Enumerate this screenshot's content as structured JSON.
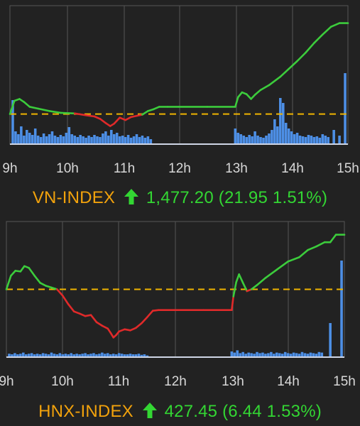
{
  "colors": {
    "background": "#222222",
    "grid": "#555555",
    "up_line": "#3ccc3c",
    "down_line": "#e02a2a",
    "reference_line": "#f0b400",
    "volume": "#4d8fe6",
    "index_name": "#f2a20c",
    "change": "#33d633"
  },
  "chart_data": [
    {
      "type": "line",
      "index_name": "VN-INDEX",
      "value_text": "1,477.20",
      "change_text": "(21.95 1.51%)",
      "direction": "up",
      "arrow_icon": "up-arrow-icon",
      "x_ticks": [
        "9h",
        "10h",
        "11h",
        "12h",
        "13h",
        "14h",
        "15h"
      ],
      "reference_level": 0.0,
      "grid": true,
      "series": [
        {
          "kind": "price_change_pct",
          "x": [
            9.0,
            9.08,
            9.17,
            9.25,
            9.35,
            9.5,
            9.7,
            9.9,
            10.15,
            10.35,
            10.5,
            10.6,
            10.7,
            10.78,
            10.85,
            10.95,
            11.05,
            11.15,
            11.25,
            11.35,
            11.45,
            11.55,
            11.65,
            11.8,
            12.0,
            12.5,
            13.0,
            13.05,
            13.12,
            13.2,
            13.28,
            13.35,
            13.45,
            13.6,
            13.8,
            13.95,
            14.1,
            14.25,
            14.4,
            14.55,
            14.7,
            14.85,
            15.0
          ],
          "y": [
            0.0,
            0.22,
            0.25,
            0.2,
            0.12,
            0.09,
            0.05,
            0.02,
            0.01,
            -0.02,
            -0.04,
            -0.08,
            -0.15,
            -0.2,
            -0.16,
            -0.06,
            -0.1,
            -0.05,
            -0.03,
            -0.01,
            0.05,
            0.08,
            0.12,
            0.12,
            0.12,
            0.12,
            0.12,
            0.28,
            0.36,
            0.33,
            0.25,
            0.32,
            0.4,
            0.48,
            0.62,
            0.75,
            0.88,
            1.02,
            1.18,
            1.32,
            1.45,
            1.51,
            1.51
          ]
        },
        {
          "kind": "volume",
          "x": [
            9.05,
            9.1,
            9.15,
            9.2,
            9.25,
            9.3,
            9.35,
            9.4,
            9.45,
            9.5,
            9.55,
            9.6,
            9.65,
            9.7,
            9.75,
            9.8,
            9.85,
            9.9,
            9.95,
            10.0,
            10.05,
            10.1,
            10.15,
            10.2,
            10.25,
            10.3,
            10.35,
            10.4,
            10.45,
            10.5,
            10.55,
            10.6,
            10.65,
            10.7,
            10.75,
            10.8,
            10.85,
            10.9,
            10.95,
            11.0,
            11.05,
            11.1,
            11.15,
            11.2,
            11.25,
            11.3,
            11.35,
            11.4,
            11.45,
            11.5,
            13.0,
            13.05,
            13.1,
            13.15,
            13.2,
            13.25,
            13.3,
            13.35,
            13.4,
            13.45,
            13.5,
            13.55,
            13.6,
            13.65,
            13.7,
            13.75,
            13.8,
            13.85,
            13.9,
            13.95,
            14.0,
            14.05,
            14.1,
            14.15,
            14.2,
            14.25,
            14.3,
            14.35,
            14.4,
            14.45,
            14.5,
            14.55,
            14.6,
            14.65,
            14.75,
            14.85,
            14.95
          ],
          "y": [
            62,
            18,
            14,
            25,
            12,
            20,
            16,
            13,
            22,
            12,
            10,
            15,
            11,
            14,
            18,
            12,
            10,
            13,
            11,
            16,
            24,
            14,
            12,
            10,
            13,
            11,
            9,
            12,
            10,
            13,
            11,
            10,
            15,
            18,
            12,
            20,
            14,
            16,
            11,
            12,
            10,
            13,
            9,
            11,
            14,
            10,
            12,
            9,
            11,
            7,
            22,
            16,
            14,
            12,
            10,
            13,
            11,
            18,
            12,
            10,
            9,
            12,
            15,
            20,
            35,
            25,
            65,
            58,
            30,
            22,
            18,
            14,
            16,
            12,
            11,
            10,
            13,
            12,
            10,
            11,
            9,
            14,
            12,
            10,
            20,
            12,
            100
          ]
        }
      ]
    },
    {
      "type": "line",
      "index_name": "HNX-INDEX",
      "value_text": "427.45",
      "change_text": "(6.44 1.53%)",
      "direction": "up",
      "arrow_icon": "up-arrow-icon",
      "x_ticks": [
        "9h",
        "10h",
        "11h",
        "12h",
        "13h",
        "14h",
        "15h"
      ],
      "reference_level": 0.0,
      "grid": true,
      "series": [
        {
          "kind": "price_change_pct",
          "x": [
            9.0,
            9.08,
            9.16,
            9.25,
            9.32,
            9.4,
            9.5,
            9.6,
            9.7,
            9.8,
            9.9,
            10.0,
            10.1,
            10.2,
            10.3,
            10.4,
            10.5,
            10.6,
            10.7,
            10.8,
            10.85,
            10.9,
            10.95,
            11.0,
            11.1,
            11.2,
            11.3,
            11.4,
            11.5,
            11.6,
            11.7,
            12.0,
            12.5,
            13.0,
            13.03,
            13.08,
            13.13,
            13.2,
            13.27,
            13.35,
            13.45,
            13.6,
            13.8,
            14.0,
            14.2,
            14.35,
            14.5,
            14.65,
            14.75,
            14.85,
            15.0
          ],
          "y": [
            0.0,
            0.38,
            0.52,
            0.5,
            0.65,
            0.6,
            0.38,
            0.18,
            0.1,
            0.05,
            0.0,
            -0.18,
            -0.42,
            -0.62,
            -0.68,
            -0.75,
            -0.72,
            -0.92,
            -1.02,
            -1.1,
            -1.22,
            -1.35,
            -1.28,
            -1.18,
            -1.12,
            -1.15,
            -1.08,
            -0.95,
            -0.78,
            -0.6,
            -0.58,
            -0.58,
            -0.58,
            -0.58,
            -0.2,
            0.2,
            0.42,
            0.18,
            -0.05,
            0.0,
            0.12,
            0.32,
            0.55,
            0.78,
            0.9,
            1.1,
            1.2,
            1.32,
            1.32,
            1.53,
            1.53
          ]
        },
        {
          "kind": "volume",
          "x": [
            9.05,
            9.1,
            9.15,
            9.2,
            9.25,
            9.3,
            9.35,
            9.4,
            9.45,
            9.5,
            9.55,
            9.6,
            9.65,
            9.7,
            9.75,
            9.8,
            9.85,
            9.9,
            9.95,
            10.0,
            10.05,
            10.1,
            10.15,
            10.2,
            10.25,
            10.3,
            10.35,
            10.4,
            10.45,
            10.5,
            10.55,
            10.6,
            10.65,
            10.7,
            10.75,
            10.8,
            10.85,
            10.9,
            10.95,
            11.0,
            11.05,
            11.1,
            11.15,
            11.2,
            11.25,
            11.3,
            11.35,
            11.4,
            11.45,
            11.5,
            13.0,
            13.05,
            13.1,
            13.15,
            13.2,
            13.25,
            13.3,
            13.35,
            13.4,
            13.45,
            13.5,
            13.55,
            13.6,
            13.65,
            13.7,
            13.75,
            13.8,
            13.85,
            13.9,
            13.95,
            14.0,
            14.05,
            14.1,
            14.15,
            14.2,
            14.25,
            14.3,
            14.35,
            14.4,
            14.45,
            14.5,
            14.55,
            14.6,
            14.75,
            14.95
          ],
          "y": [
            6,
            5,
            7,
            5,
            6,
            8,
            5,
            6,
            7,
            5,
            6,
            5,
            7,
            6,
            5,
            8,
            6,
            5,
            7,
            5,
            6,
            5,
            7,
            5,
            6,
            5,
            6,
            7,
            5,
            6,
            7,
            5,
            6,
            8,
            6,
            7,
            5,
            6,
            5,
            7,
            6,
            5,
            5,
            6,
            5,
            5,
            6,
            4,
            5,
            3,
            10,
            8,
            12,
            7,
            9,
            6,
            8,
            7,
            6,
            9,
            7,
            8,
            6,
            7,
            9,
            6,
            8,
            7,
            6,
            9,
            7,
            6,
            8,
            7,
            6,
            9,
            7,
            6,
            8,
            7,
            6,
            9,
            8,
            60,
            170
          ]
        }
      ]
    }
  ]
}
